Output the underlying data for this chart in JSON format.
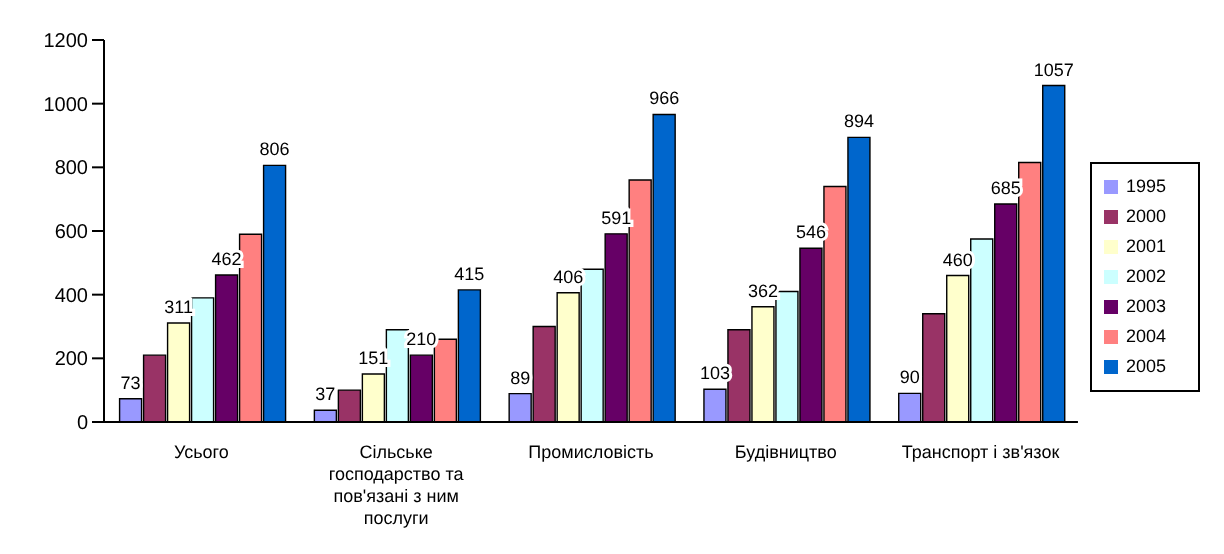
{
  "chart_data": {
    "type": "bar",
    "categories": [
      "Усього",
      "Сільське господарство та пов'язані з ним послуги",
      "Промисловість",
      "Будівництво",
      "Транспорт і зв'язок"
    ],
    "series": [
      {
        "name": "1995",
        "color": "#9999ff",
        "values": [
          73,
          37,
          89,
          103,
          90
        ],
        "value_labels": [
          "73",
          "37",
          "89",
          "103",
          "90"
        ]
      },
      {
        "name": "2000",
        "color": "#993366",
        "values": [
          210,
          100,
          300,
          290,
          340
        ]
      },
      {
        "name": "2001",
        "color": "#ffffcc",
        "values": [
          311,
          151,
          406,
          362,
          460
        ],
        "value_labels": [
          "311",
          "151",
          "406",
          "362",
          "460"
        ]
      },
      {
        "name": "2002",
        "color": "#ccffff",
        "values": [
          390,
          290,
          480,
          410,
          575
        ]
      },
      {
        "name": "2003",
        "color": "#660066",
        "values": [
          462,
          210,
          591,
          546,
          685
        ],
        "value_labels": [
          "462",
          "210",
          "591",
          "546",
          "685"
        ]
      },
      {
        "name": "2004",
        "color": "#ff8080",
        "values": [
          590,
          260,
          760,
          740,
          815
        ]
      },
      {
        "name": "2005",
        "color": "#0066cc",
        "values": [
          806,
          415,
          966,
          894,
          1057
        ],
        "value_labels": [
          "806",
          "415",
          "966",
          "894",
          "1057"
        ]
      }
    ],
    "ylim": [
      0,
      1200
    ],
    "yticks": [
      0,
      200,
      400,
      600,
      800,
      1000,
      1200
    ],
    "grid": false,
    "legend": "right"
  }
}
